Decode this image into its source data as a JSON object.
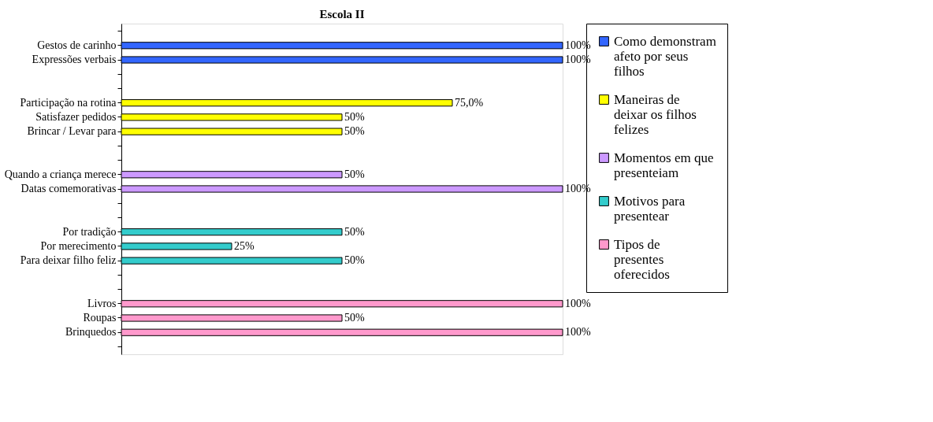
{
  "chart_data": {
    "type": "bar",
    "orientation": "horizontal",
    "title": "Escola II",
    "legend": "right",
    "categories": [
      null,
      "Gestos de carinho",
      "Expressões verbais",
      null,
      null,
      "Participação na rotina",
      "Satisfazer pedidos",
      "Brincar / Levar para",
      null,
      null,
      "Quando a criança merece",
      "Datas comemorativas",
      null,
      null,
      "Por tradição",
      "Por merecimento",
      "Para deixar filho feliz",
      null,
      null,
      "Livros",
      "Roupas",
      "Brinquedos",
      null
    ],
    "series": [
      {
        "name": "Como demonstram afeto por seus filhos",
        "color": "#3366ff",
        "values": [
          null,
          100,
          100,
          null,
          null,
          null,
          null,
          null,
          null,
          null,
          null,
          null,
          null,
          null,
          null,
          null,
          null,
          null,
          null,
          null,
          null,
          null,
          null
        ],
        "value_labels": [
          null,
          "100%",
          "100%",
          null,
          null,
          null,
          null,
          null,
          null,
          null,
          null,
          null,
          null,
          null,
          null,
          null,
          null,
          null,
          null,
          null,
          null,
          null,
          null
        ]
      },
      {
        "name": "Maneiras de deixar os filhos felizes",
        "color": "#ffff00",
        "values": [
          null,
          null,
          null,
          null,
          null,
          75,
          50,
          50,
          null,
          null,
          null,
          null,
          null,
          null,
          null,
          null,
          null,
          null,
          null,
          null,
          null,
          null,
          null
        ],
        "value_labels": [
          null,
          null,
          null,
          null,
          null,
          "75,0%",
          "50%",
          "50%",
          null,
          null,
          null,
          null,
          null,
          null,
          null,
          null,
          null,
          null,
          null,
          null,
          null,
          null,
          null
        ]
      },
      {
        "name": "Momentos em que presenteiam",
        "color": "#cc99ff",
        "values": [
          null,
          null,
          null,
          null,
          null,
          null,
          null,
          null,
          null,
          null,
          50,
          100,
          null,
          null,
          null,
          null,
          null,
          null,
          null,
          null,
          null,
          null,
          null
        ],
        "value_labels": [
          null,
          null,
          null,
          null,
          null,
          null,
          null,
          null,
          null,
          null,
          "50%",
          "100%",
          null,
          null,
          null,
          null,
          null,
          null,
          null,
          null,
          null,
          null,
          null
        ]
      },
      {
        "name": "Motivos para presentear",
        "color": "#33cccc",
        "values": [
          null,
          null,
          null,
          null,
          null,
          null,
          null,
          null,
          null,
          null,
          null,
          null,
          null,
          null,
          50,
          25,
          50,
          null,
          null,
          null,
          null,
          null,
          null
        ],
        "value_labels": [
          null,
          null,
          null,
          null,
          null,
          null,
          null,
          null,
          null,
          null,
          null,
          null,
          null,
          null,
          "50%",
          "25%",
          "50%",
          null,
          null,
          null,
          null,
          null,
          null
        ]
      },
      {
        "name": "Tipos de presentes oferecidos",
        "color": "#ff99cc",
        "values": [
          null,
          null,
          null,
          null,
          null,
          null,
          null,
          null,
          null,
          null,
          null,
          null,
          null,
          null,
          null,
          null,
          null,
          null,
          null,
          100,
          50,
          100,
          null
        ],
        "value_labels": [
          null,
          null,
          null,
          null,
          null,
          null,
          null,
          null,
          null,
          null,
          null,
          null,
          null,
          null,
          null,
          null,
          null,
          null,
          null,
          "100%",
          "50%",
          "100%",
          null
        ]
      }
    ]
  }
}
